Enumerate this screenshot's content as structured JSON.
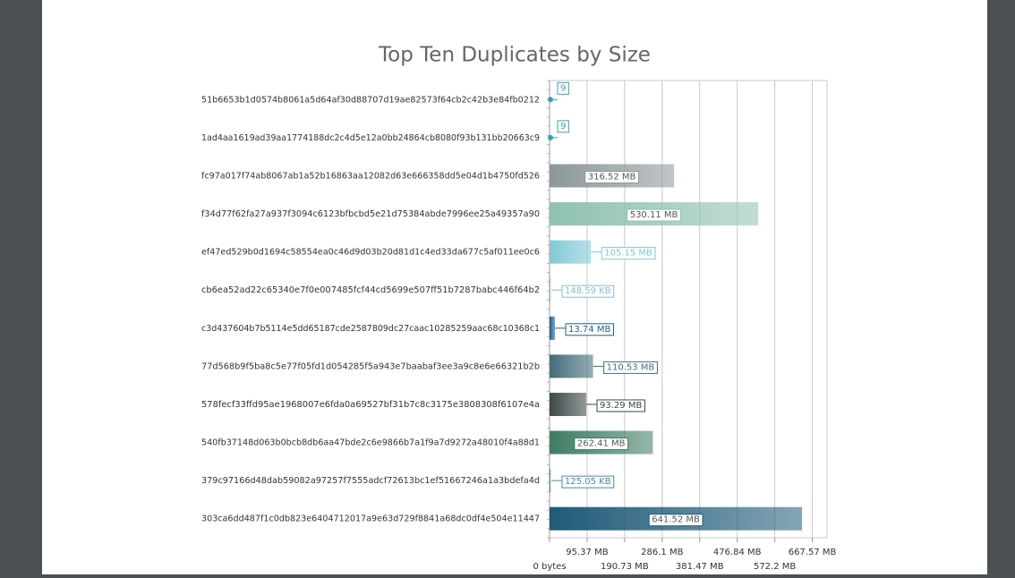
{
  "chart_data": {
    "type": "bar",
    "orientation": "horizontal",
    "title": "Top Ten Duplicates by Size",
    "categories": [
      "51b6653b1d0574b8061a5d64af30d88707d19ae82573f64cb2c42b3e84fb0212",
      "1ad4aa1619ad39aa1774188dc2c4d5e12a0bb24864cb8080f93b131bb20663c9",
      "fc97a017f74ab8067ab1a52b16863aa12082d63e666358dd5e04d1b4750fd526",
      "f34d77f62fa27a937f3094c6123bfbcbd5e21d75384abde7996ee25a49357a90",
      "ef47ed529b0d1694c58554ea0c46d9d03b20d81d1c4ed33da677c5af011ee0c6",
      "cb6ea52ad22c65340e7f0e007485fcf44cd5699e507ff51b7287babc446f64b2",
      "c3d437604b7b5114e5dd65187cde2587809dc27caac10285259aac68c10368c1",
      "77d568b9f5ba8c5e77f05fd1d054285f5a943e7baabaf3ee3a9c8e6e66321b2b",
      "578fecf33ffd95ae1968007e6fda0a69527bf31b7c8c3175e3808308f6107e4a",
      "540fb37148d063b0bcb8db6aa47bde2c6e9866b7a1f9a7d9272a48010f4a88d1",
      "379c97166d48dab59082a97257f7555adcf72613bc1ef51667246a1a3bdefa4d",
      "303ca6dd487f1c0db823e6404712017a9e63d729f8841a68dc0df4e504e11447"
    ],
    "values": [
      8.6e-06,
      8.6e-06,
      316.52,
      530.11,
      105.15,
      0.1451,
      13.74,
      110.53,
      93.29,
      262.41,
      0.1221,
      641.52
    ],
    "value_labels": [
      "9",
      "9",
      "316.52 MB",
      "530.11 MB",
      "105.15 MB",
      "148.59 KB",
      "13.74 MB",
      "110.53 MB",
      "93.29 MB",
      "262.41 MB",
      "125.05 KB",
      "641.52 MB"
    ],
    "colors": [
      "#3aa0b5",
      "#3aa0b5",
      "#8c9799",
      "#8fc1b1",
      "#7fc9d6",
      "#8ab9c9",
      "#1e5f8f",
      "#436c78",
      "#3c4748",
      "#3e7c62",
      "#4a8aa0",
      "#1f5a78"
    ],
    "xlim": [
      0,
      705
    ],
    "xticks": [
      {
        "value": 0,
        "label": "0 bytes"
      },
      {
        "value": 95.37,
        "label": "95.37 MB"
      },
      {
        "value": 190.73,
        "label": "190.73 MB"
      },
      {
        "value": 286.1,
        "label": "286.1 MB"
      },
      {
        "value": 381.47,
        "label": "381.47 MB"
      },
      {
        "value": 476.84,
        "label": "476.84 MB"
      },
      {
        "value": 572.2,
        "label": "572.2 MB"
      },
      {
        "value": 667.57,
        "label": "667.57 MB"
      }
    ],
    "grid": true
  }
}
